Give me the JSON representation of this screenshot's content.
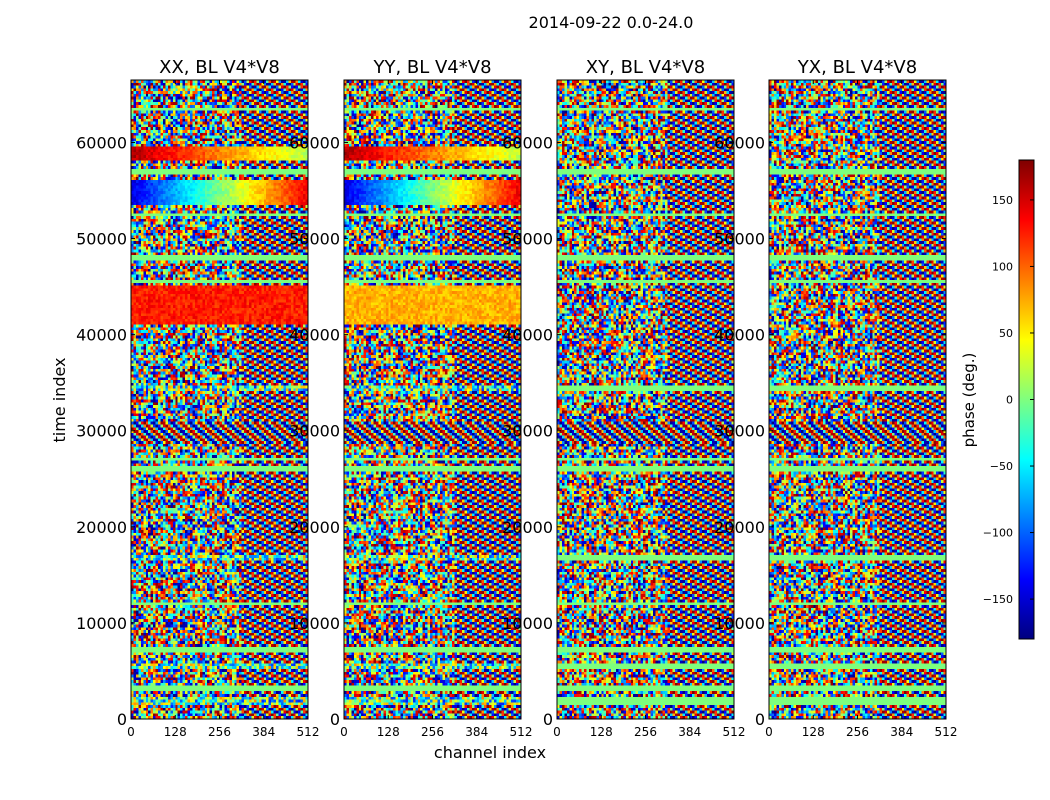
{
  "figure": {
    "title": "2014-09-22 0.0-24.0",
    "xlabel": "channel index",
    "ylabel": "time index"
  },
  "chart_data": {
    "type": "heatmap",
    "title": "2014-09-22 0.0-24.0",
    "xlabel": "channel index",
    "ylabel": "time index",
    "xlim": [
      0,
      512
    ],
    "ylim": [
      0,
      66500
    ],
    "xticks": [
      0,
      128,
      256,
      384,
      512
    ],
    "yticks": [
      0,
      10000,
      20000,
      30000,
      40000,
      50000,
      60000
    ],
    "panels": [
      {
        "title": "XX, BL V4*V8",
        "pol": "XX"
      },
      {
        "title": "YY, BL V4*V8",
        "pol": "YY"
      },
      {
        "title": "XY, BL V4*V8",
        "pol": "XY"
      },
      {
        "title": "YX, BL V4*V8",
        "pol": "YX"
      }
    ],
    "colorbar": {
      "label": "phase (deg.)",
      "range": [
        -180,
        180
      ],
      "ticks": [
        -150,
        -100,
        -50,
        0,
        50,
        100,
        150
      ],
      "tick_labels": [
        "−150",
        "−100",
        "−50",
        "0",
        "50",
        "100",
        "150"
      ],
      "colormap": [
        "#00007f",
        "#0000ff",
        "#007fff",
        "#00ffff",
        "#7fff7f",
        "#ffff00",
        "#ff7f00",
        "#ff0000",
        "#7f0000"
      ]
    }
  }
}
